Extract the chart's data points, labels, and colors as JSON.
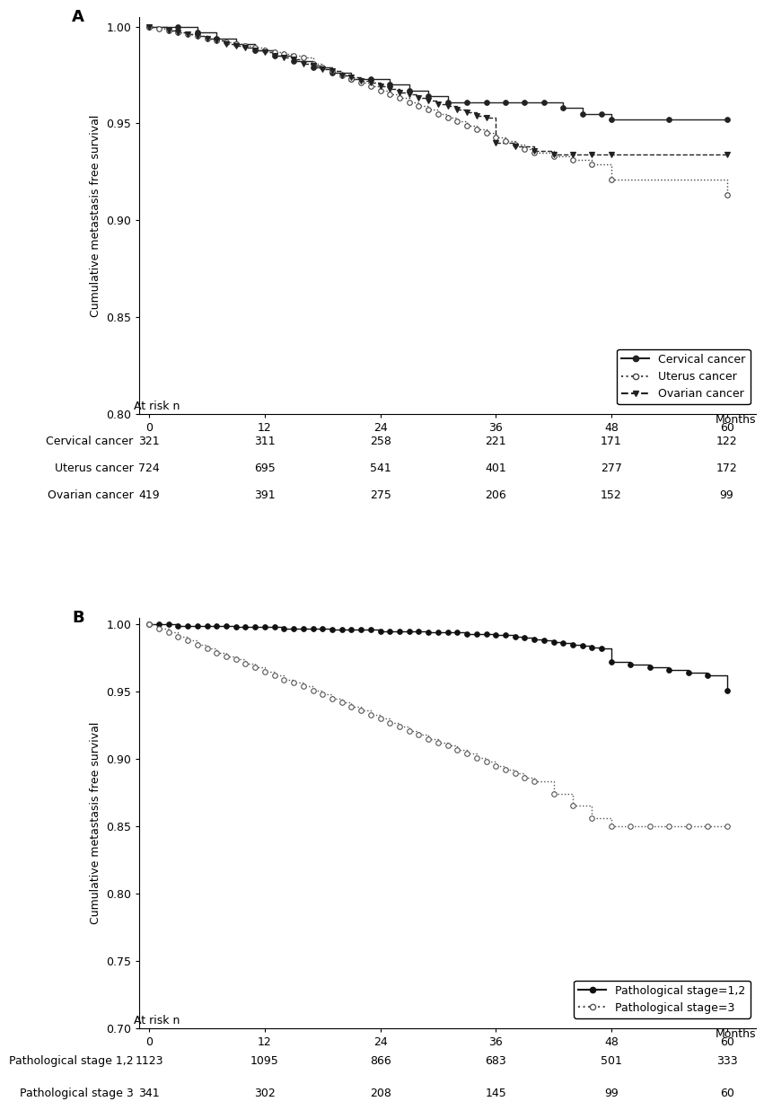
{
  "panel_A": {
    "title": "A",
    "ylabel": "Cumulative metastasis free survival",
    "xlabel": "Months",
    "ylim": [
      0.8,
      1.005
    ],
    "xlim": [
      -1,
      63
    ],
    "yticks": [
      0.8,
      0.85,
      0.9,
      0.95,
      1.0
    ],
    "xticks": [
      0,
      12,
      24,
      36,
      48,
      60
    ],
    "cervical": {
      "x": [
        0,
        3,
        5,
        7,
        9,
        11,
        13,
        15,
        17,
        19,
        21,
        23,
        25,
        27,
        29,
        31,
        33,
        35,
        37,
        39,
        41,
        43,
        45,
        47,
        48,
        54,
        60
      ],
      "y": [
        1.0,
        1.0,
        0.997,
        0.994,
        0.991,
        0.988,
        0.985,
        0.982,
        0.979,
        0.976,
        0.973,
        0.973,
        0.97,
        0.967,
        0.964,
        0.961,
        0.961,
        0.961,
        0.961,
        0.961,
        0.961,
        0.958,
        0.955,
        0.955,
        0.952,
        0.952,
        0.952
      ],
      "label": "Cervical cancer",
      "linestyle": "solid",
      "marker": "o",
      "color": "#222222",
      "markerfacecolor": "#222222"
    },
    "uterus": {
      "x": [
        0,
        1,
        2,
        3,
        4,
        5,
        6,
        7,
        8,
        9,
        10,
        11,
        12,
        13,
        14,
        15,
        16,
        17,
        18,
        19,
        20,
        21,
        22,
        23,
        24,
        25,
        26,
        27,
        28,
        29,
        30,
        31,
        32,
        33,
        34,
        35,
        36,
        37,
        38,
        39,
        40,
        42,
        44,
        46,
        48,
        60
      ],
      "y": [
        1.0,
        0.999,
        0.998,
        0.997,
        0.996,
        0.995,
        0.994,
        0.993,
        0.992,
        0.991,
        0.99,
        0.989,
        0.988,
        0.987,
        0.986,
        0.985,
        0.984,
        0.981,
        0.979,
        0.977,
        0.975,
        0.973,
        0.971,
        0.969,
        0.967,
        0.965,
        0.963,
        0.961,
        0.959,
        0.957,
        0.955,
        0.953,
        0.951,
        0.949,
        0.947,
        0.945,
        0.943,
        0.941,
        0.939,
        0.937,
        0.935,
        0.933,
        0.931,
        0.929,
        0.921,
        0.913
      ],
      "label": "Uterus cancer",
      "linestyle": "dotted",
      "marker": "o",
      "color": "#444444",
      "markerfacecolor": "white"
    },
    "ovarian": {
      "x": [
        0,
        2,
        3,
        4,
        5,
        6,
        7,
        8,
        9,
        10,
        11,
        12,
        13,
        14,
        15,
        16,
        17,
        18,
        19,
        20,
        21,
        22,
        23,
        24,
        25,
        26,
        27,
        28,
        29,
        30,
        31,
        32,
        33,
        34,
        35,
        36,
        38,
        40,
        42,
        44,
        46,
        48,
        60
      ],
      "y": [
        1.0,
        0.998,
        0.997,
        0.996,
        0.995,
        0.994,
        0.993,
        0.991,
        0.99,
        0.989,
        0.988,
        0.987,
        0.985,
        0.984,
        0.983,
        0.981,
        0.98,
        0.978,
        0.977,
        0.975,
        0.974,
        0.972,
        0.971,
        0.969,
        0.968,
        0.966,
        0.965,
        0.963,
        0.962,
        0.96,
        0.959,
        0.957,
        0.956,
        0.954,
        0.953,
        0.94,
        0.938,
        0.936,
        0.934,
        0.934,
        0.934,
        0.934,
        0.934
      ],
      "label": "Ovarian cancer",
      "linestyle": "dashed",
      "marker": "v",
      "color": "#222222",
      "markerfacecolor": "#222222"
    },
    "at_risk": {
      "header": "At risk n",
      "labels": [
        "Cervical cancer",
        "Uterus cancer",
        "Ovarian cancer"
      ],
      "timepoints": [
        0,
        12,
        24,
        36,
        48,
        60
      ],
      "values": [
        [
          321,
          311,
          258,
          221,
          171,
          122
        ],
        [
          724,
          695,
          541,
          401,
          277,
          172
        ],
        [
          419,
          391,
          275,
          206,
          152,
          99
        ]
      ]
    }
  },
  "panel_B": {
    "title": "B",
    "ylabel": "Cumulative metastasis free survival",
    "xlabel": "Months",
    "ylim": [
      0.7,
      1.005
    ],
    "xlim": [
      -1,
      63
    ],
    "yticks": [
      0.7,
      0.75,
      0.8,
      0.85,
      0.9,
      0.95,
      1.0
    ],
    "xticks": [
      0,
      12,
      24,
      36,
      48,
      60
    ],
    "stage12": {
      "x": [
        0,
        1,
        2,
        3,
        4,
        5,
        6,
        7,
        8,
        9,
        10,
        11,
        12,
        13,
        14,
        15,
        16,
        17,
        18,
        19,
        20,
        21,
        22,
        23,
        24,
        25,
        26,
        27,
        28,
        29,
        30,
        31,
        32,
        33,
        34,
        35,
        36,
        37,
        38,
        39,
        40,
        41,
        42,
        43,
        44,
        45,
        46,
        47,
        48,
        50,
        52,
        54,
        56,
        58,
        60
      ],
      "y": [
        1.0,
        1.0,
        1.0,
        0.999,
        0.999,
        0.999,
        0.999,
        0.999,
        0.999,
        0.998,
        0.998,
        0.998,
        0.998,
        0.998,
        0.997,
        0.997,
        0.997,
        0.997,
        0.997,
        0.996,
        0.996,
        0.996,
        0.996,
        0.996,
        0.995,
        0.995,
        0.995,
        0.995,
        0.995,
        0.994,
        0.994,
        0.994,
        0.994,
        0.993,
        0.993,
        0.993,
        0.992,
        0.992,
        0.991,
        0.99,
        0.989,
        0.988,
        0.987,
        0.986,
        0.985,
        0.984,
        0.983,
        0.982,
        0.972,
        0.97,
        0.968,
        0.966,
        0.964,
        0.962,
        0.951
      ],
      "label": "Pathological stage=1,2",
      "linestyle": "solid",
      "marker": "o",
      "color": "#111111",
      "markerfacecolor": "#111111"
    },
    "stage3": {
      "x": [
        0,
        1,
        2,
        3,
        4,
        5,
        6,
        7,
        8,
        9,
        10,
        11,
        12,
        13,
        14,
        15,
        16,
        17,
        18,
        19,
        20,
        21,
        22,
        23,
        24,
        25,
        26,
        27,
        28,
        29,
        30,
        31,
        32,
        33,
        34,
        35,
        36,
        37,
        38,
        39,
        40,
        42,
        44,
        46,
        48,
        50,
        52,
        54,
        56,
        58,
        60
      ],
      "y": [
        1.0,
        0.997,
        0.994,
        0.991,
        0.988,
        0.985,
        0.982,
        0.979,
        0.976,
        0.974,
        0.971,
        0.968,
        0.965,
        0.962,
        0.959,
        0.957,
        0.954,
        0.951,
        0.948,
        0.945,
        0.942,
        0.939,
        0.936,
        0.933,
        0.93,
        0.927,
        0.924,
        0.921,
        0.918,
        0.915,
        0.912,
        0.91,
        0.907,
        0.904,
        0.901,
        0.898,
        0.895,
        0.892,
        0.889,
        0.886,
        0.883,
        0.874,
        0.865,
        0.856,
        0.85,
        0.85,
        0.85,
        0.85,
        0.85,
        0.85,
        0.85
      ],
      "label": "Pathological stage=3",
      "linestyle": "dotted",
      "marker": "o",
      "color": "#555555",
      "markerfacecolor": "white"
    },
    "at_risk": {
      "header": "At risk n",
      "labels": [
        "Pathological stage 1,2",
        "Pathological stage 3"
      ],
      "timepoints": [
        0,
        12,
        24,
        36,
        48,
        60
      ],
      "values": [
        [
          1123,
          1095,
          866,
          683,
          501,
          333
        ],
        [
          341,
          302,
          208,
          145,
          99,
          60
        ]
      ]
    }
  },
  "background_color": "#ffffff",
  "font_size": 9,
  "title_font_size": 13,
  "label_font_size": 9
}
